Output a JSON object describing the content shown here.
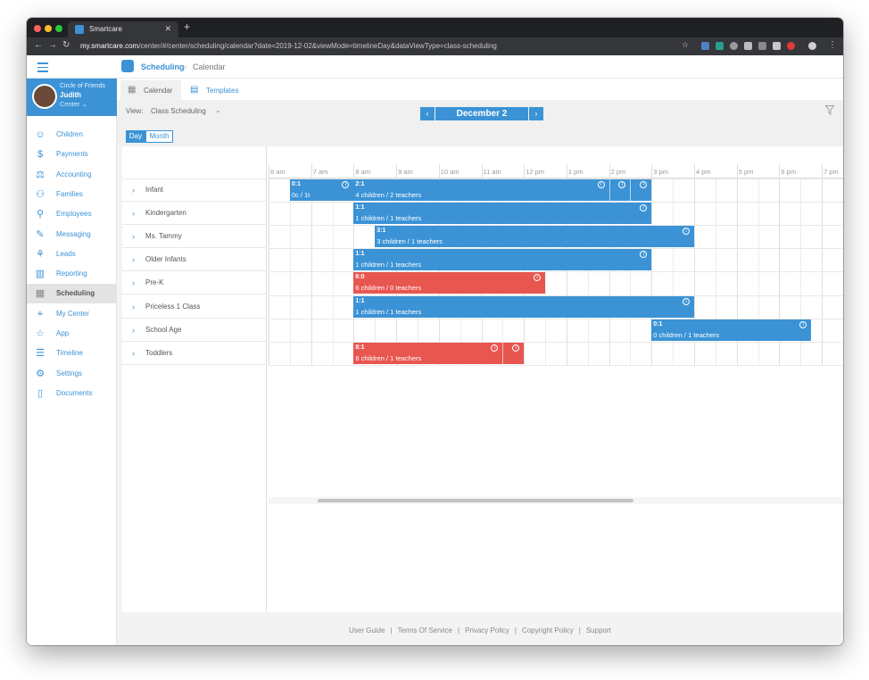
{
  "browser": {
    "tab_title": "Smartcare",
    "url_host": "my.smartcare.com",
    "url_path": "/center/#/center/scheduling/calendar?date=2019-12-02&viewMode=timelineDay&dataViewType=class-scheduling"
  },
  "header": {
    "section": "Scheduling",
    "page": "Calendar"
  },
  "profile": {
    "org": "Circle of Friends",
    "name": "Judith",
    "role": "Center"
  },
  "sidebar": {
    "items": [
      {
        "label": "Children",
        "icon": "children-icon"
      },
      {
        "label": "Payments",
        "icon": "payments-icon"
      },
      {
        "label": "Accounting",
        "icon": "accounting-icon"
      },
      {
        "label": "Families",
        "icon": "families-icon"
      },
      {
        "label": "Employees",
        "icon": "employees-icon"
      },
      {
        "label": "Messaging",
        "icon": "messaging-icon"
      },
      {
        "label": "Leads",
        "icon": "leads-icon"
      },
      {
        "label": "Reporting",
        "icon": "reporting-icon"
      },
      {
        "label": "Scheduling",
        "icon": "scheduling-icon"
      },
      {
        "label": "My Center",
        "icon": "location-icon"
      },
      {
        "label": "App",
        "icon": "star-icon"
      },
      {
        "label": "Timeline",
        "icon": "timeline-icon"
      },
      {
        "label": "Settings",
        "icon": "settings-icon"
      },
      {
        "label": "Documents",
        "icon": "document-icon"
      }
    ],
    "active": "Scheduling"
  },
  "subtabs": {
    "calendar": "Calendar",
    "templates": "Templates"
  },
  "toolbar": {
    "view_label": "View:",
    "view_value": "Class Scheduling",
    "date": "December 2",
    "prev": "‹",
    "next": "›"
  },
  "viewmodes": {
    "day": "Day",
    "month": "Month"
  },
  "timeline": {
    "hours": [
      "6 am",
      "7 am",
      "8 am",
      "9 am",
      "10 am",
      "11 am",
      "12 pm",
      "1 pm",
      "2 pm",
      "3 pm",
      "4 pm",
      "5 pm",
      "6 pm",
      "7 pm"
    ],
    "classes": [
      "Infant",
      "Kindergarten",
      "Ms. Tammy",
      "Older Infants",
      "Pre-K",
      "Priceless 1 Class",
      "School Age",
      "Toddlers"
    ],
    "events": [
      {
        "row": 0,
        "start": 6.5,
        "end": 8.0,
        "ratio": "0:1",
        "desc": "0c / 1t",
        "color": "blue"
      },
      {
        "row": 0,
        "start": 8.0,
        "end": 15.0,
        "ratio": "2:1",
        "desc": "4 children / 2 teachers",
        "color": "blue",
        "extra_info_at": [
          14.0,
          14.5
        ]
      },
      {
        "row": 1,
        "start": 8.0,
        "end": 15.0,
        "ratio": "1:1",
        "desc": "1 children / 1 teachers",
        "color": "blue"
      },
      {
        "row": 2,
        "start": 8.5,
        "end": 16.0,
        "ratio": "3:1",
        "desc": "3 children / 1 teachers",
        "color": "blue"
      },
      {
        "row": 3,
        "start": 8.0,
        "end": 15.0,
        "ratio": "1:1",
        "desc": "1 children / 1 teachers",
        "color": "blue"
      },
      {
        "row": 4,
        "start": 8.0,
        "end": 12.5,
        "ratio": "6:0",
        "desc": "6 children / 0 teachers",
        "color": "red"
      },
      {
        "row": 5,
        "start": 8.0,
        "end": 16.0,
        "ratio": "1:1",
        "desc": "1 children / 1 teachers",
        "color": "blue"
      },
      {
        "row": 6,
        "start": 15.0,
        "end": 18.75,
        "ratio": "0:1",
        "desc": "0 children / 1 teachers",
        "color": "blue"
      },
      {
        "row": 7,
        "start": 8.0,
        "end": 12.0,
        "ratio": "8:1",
        "desc": "8 children / 1 teachers",
        "color": "red",
        "extra_info_at": [
          11.5
        ]
      }
    ]
  },
  "footer": {
    "links": [
      "User Guide",
      "Terms Of Service",
      "Privacy Policy",
      "Copyright Policy",
      "Support"
    ]
  },
  "colors": {
    "accent": "#3b93d6",
    "alert": "#e85650"
  }
}
